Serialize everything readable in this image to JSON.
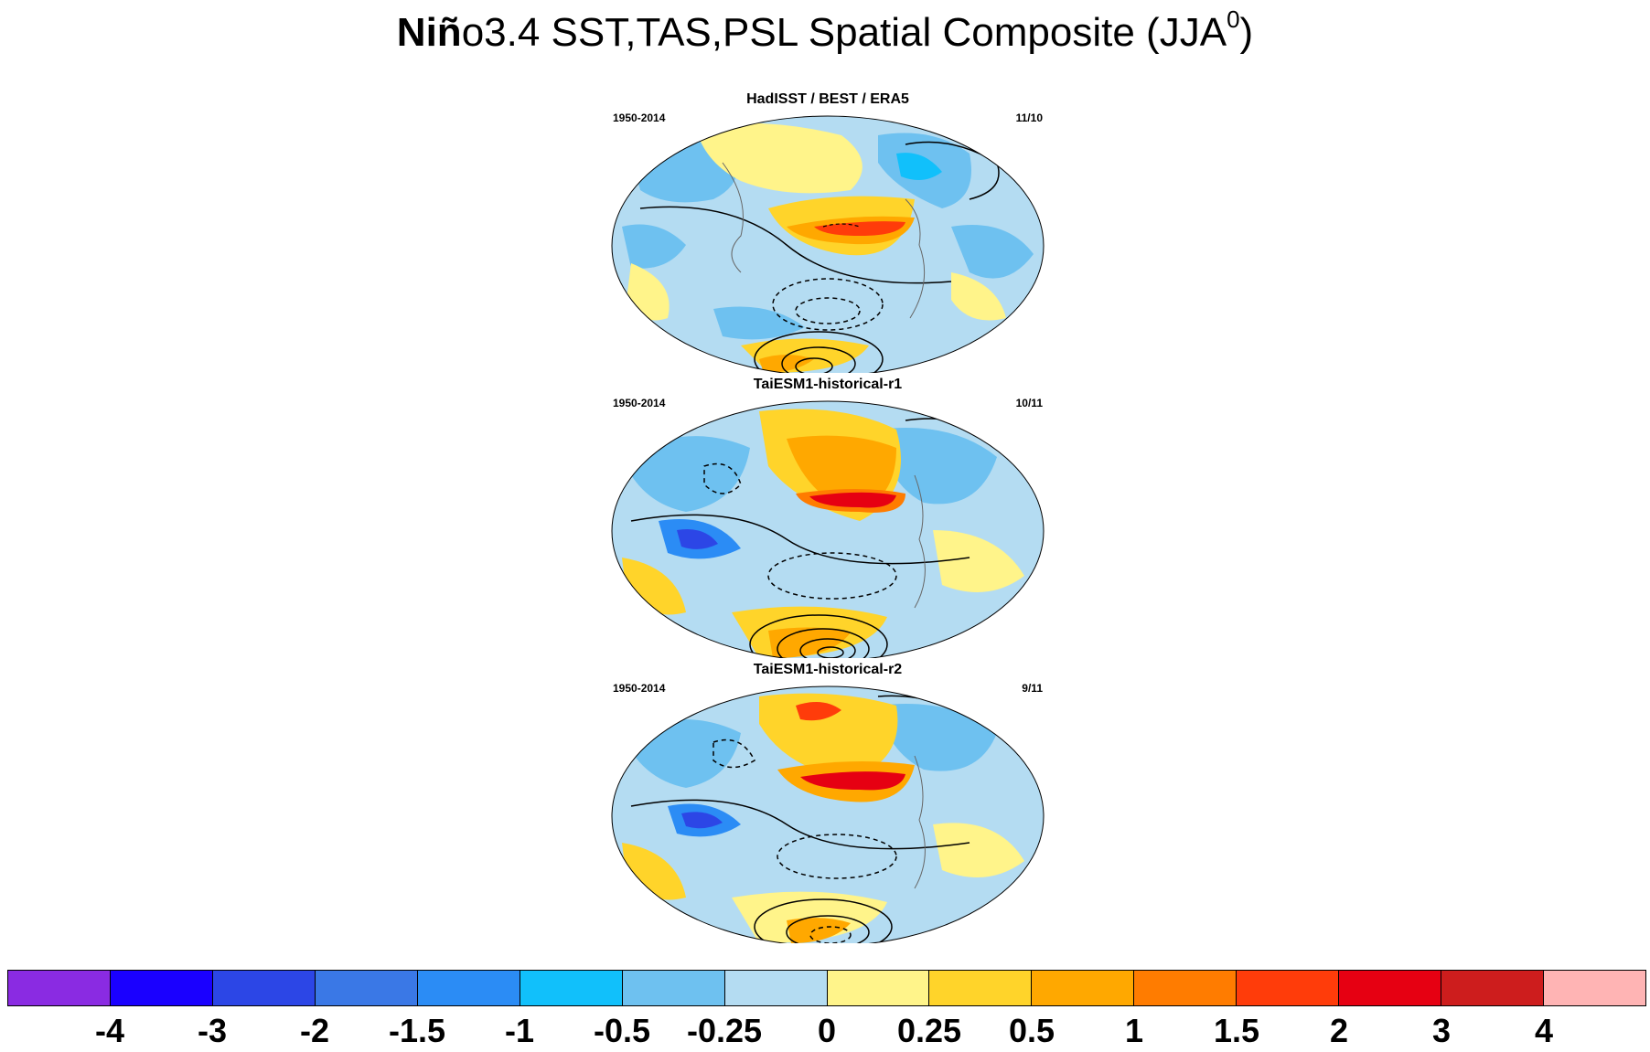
{
  "title": {
    "bold": "Niñ",
    "rest": "o3.4 SST,TAS,PSL Spatial Composite (JJA",
    "sup": "0",
    "close": ")"
  },
  "panels": [
    {
      "title": "HadISST / BEST / ERA5",
      "left": "1950-2014",
      "right": "11/10"
    },
    {
      "title": "TaiESM1-historical-r1",
      "left": "1950-2014",
      "right": "10/11"
    },
    {
      "title": "TaiESM1-historical-r2",
      "left": "1950-2014",
      "right": "9/11"
    }
  ],
  "colorbar": {
    "colors": [
      "#8a2be2",
      "#1a00ff",
      "#2c46e6",
      "#3a78e6",
      "#2b8cf5",
      "#11c0fb",
      "#6ec1f0",
      "#b4dcf2",
      "#fff48a",
      "#ffd42a",
      "#ffa800",
      "#ff7c00",
      "#ff3c0a",
      "#e60012",
      "#cd1d1d",
      "#ffb4b4"
    ],
    "labels": [
      "-4",
      "-3",
      "-2",
      "-1.5",
      "-1",
      "-0.5",
      "-0.25",
      "0",
      "0.25",
      "0.5",
      "1",
      "1.5",
      "2",
      "3",
      "4"
    ]
  }
}
